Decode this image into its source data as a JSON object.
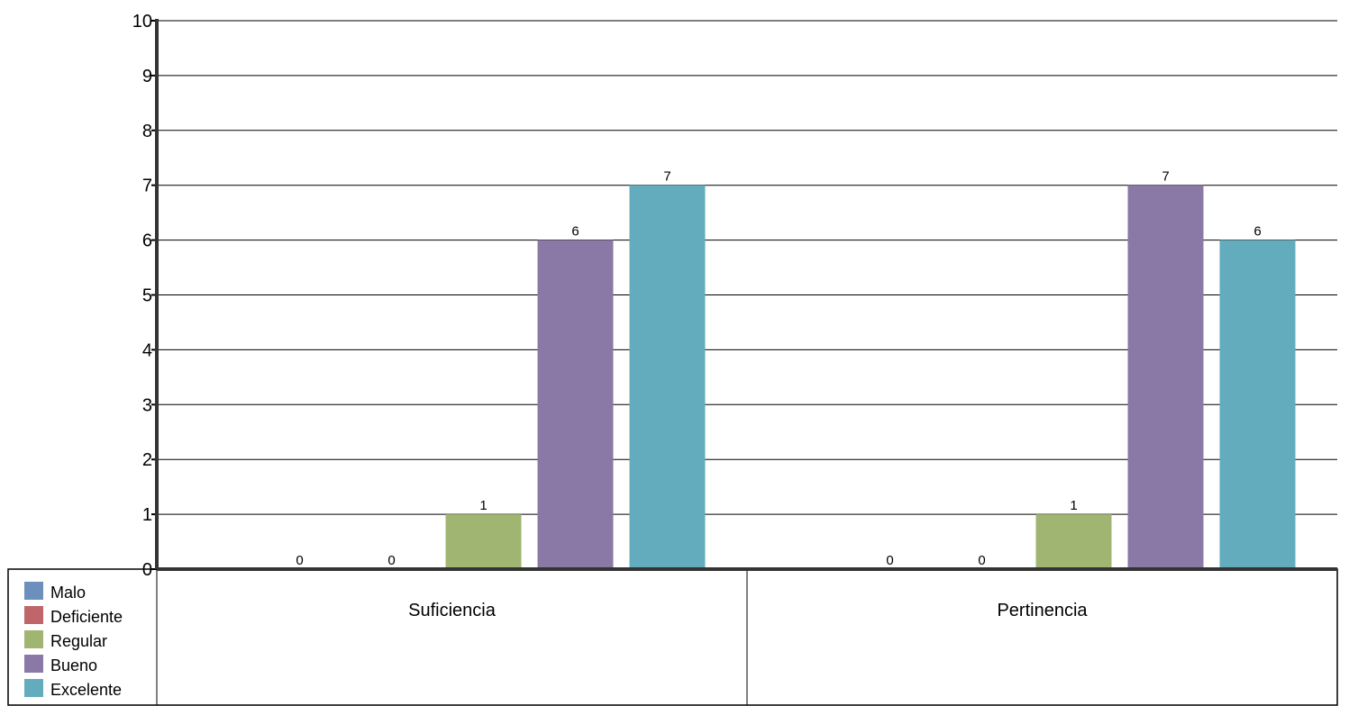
{
  "chart_data": {
    "type": "bar",
    "categories": [
      "Suficiencia",
      "Pertinencia"
    ],
    "series": [
      {
        "name": "Malo",
        "values": [
          0,
          0
        ],
        "color": "#6d8fbb"
      },
      {
        "name": "Deficiente",
        "values": [
          0,
          0
        ],
        "color": "#c0666a"
      },
      {
        "name": "Regular",
        "values": [
          1,
          1
        ],
        "color": "#a0b572"
      },
      {
        "name": "Bueno",
        "values": [
          6,
          7
        ],
        "color": "#8a78a6"
      },
      {
        "name": "Excelente",
        "values": [
          7,
          6
        ],
        "color": "#62acbd"
      }
    ],
    "yticks": [
      "0",
      "1",
      "2",
      "3",
      "4",
      "5",
      "6",
      "7",
      "8",
      "9",
      "10"
    ],
    "ylim": [
      0,
      10
    ],
    "grid": true,
    "legend_position": "bottom-left",
    "data_labels": true
  }
}
